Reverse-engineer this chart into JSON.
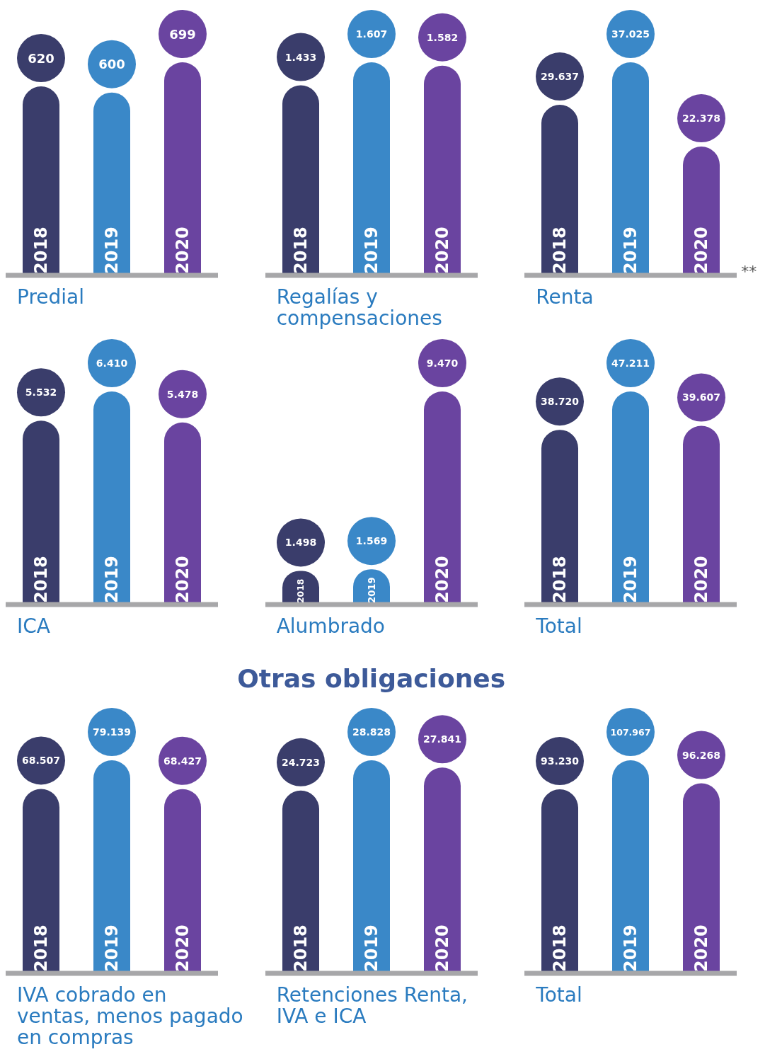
{
  "chart_data": [
    {
      "type": "bar",
      "xlabel": "Predial",
      "categories": [
        "2018",
        "2019",
        "2020"
      ],
      "values": [
        620,
        600,
        699
      ],
      "value_labels": [
        "620",
        "600",
        "699"
      ],
      "colors": [
        "#3a3d6b",
        "#3a88c8",
        "#6a44a0"
      ]
    },
    {
      "type": "bar",
      "xlabel": "Regalías y compensaciones",
      "categories": [
        "2018",
        "2019",
        "2020"
      ],
      "values": [
        1433,
        1607,
        1582
      ],
      "value_labels": [
        "1.433",
        "1.607",
        "1.582"
      ],
      "colors": [
        "#3a3d6b",
        "#3a88c8",
        "#6a44a0"
      ]
    },
    {
      "type": "bar",
      "xlabel": "Renta",
      "annotations": [
        "**"
      ],
      "categories": [
        "2018",
        "2019",
        "2020"
      ],
      "values": [
        29637,
        37025,
        22378
      ],
      "value_labels": [
        "29.637",
        "37.025",
        "22.378"
      ],
      "colors": [
        "#3a3d6b",
        "#3a88c8",
        "#6a44a0"
      ]
    },
    {
      "type": "bar",
      "xlabel": "ICA",
      "categories": [
        "2018",
        "2019",
        "2020"
      ],
      "values": [
        5532,
        6410,
        5478
      ],
      "value_labels": [
        "5.532",
        "6.410",
        "5.478"
      ],
      "colors": [
        "#3a3d6b",
        "#3a88c8",
        "#6a44a0"
      ]
    },
    {
      "type": "bar",
      "xlabel": "Alumbrado",
      "categories": [
        "2018",
        "2019",
        "2020"
      ],
      "values": [
        1498,
        1569,
        9470
      ],
      "value_labels": [
        "1.498",
        "1.569",
        "9.470"
      ],
      "colors": [
        "#3a3d6b",
        "#3a88c8",
        "#6a44a0"
      ]
    },
    {
      "type": "bar",
      "xlabel": "Total",
      "categories": [
        "2018",
        "2019",
        "2020"
      ],
      "values": [
        38720,
        47211,
        39607
      ],
      "value_labels": [
        "38.720",
        "47.211",
        "39.607"
      ],
      "colors": [
        "#3a3d6b",
        "#3a88c8",
        "#6a44a0"
      ]
    },
    {
      "type": "bar",
      "xlabel": "IVA cobrado en ventas, menos pagado en compras",
      "categories": [
        "2018",
        "2019",
        "2020"
      ],
      "values": [
        68507,
        79139,
        68427
      ],
      "value_labels": [
        "68.507",
        "79.139",
        "68.427"
      ],
      "colors": [
        "#3a3d6b",
        "#3a88c8",
        "#6a44a0"
      ]
    },
    {
      "type": "bar",
      "title": "Otras obligaciones",
      "xlabel": "Retenciones Renta, IVA e ICA",
      "categories": [
        "2018",
        "2019",
        "2020"
      ],
      "values": [
        24723,
        28828,
        27841
      ],
      "value_labels": [
        "24.723",
        "28.828",
        "27.841"
      ],
      "colors": [
        "#3a3d6b",
        "#3a88c8",
        "#6a44a0"
      ]
    },
    {
      "type": "bar",
      "xlabel": "Total",
      "categories": [
        "2018",
        "2019",
        "2020"
      ],
      "values": [
        93230,
        107967,
        96268
      ],
      "value_labels": [
        "93.230",
        "107.967",
        "96.268"
      ],
      "colors": [
        "#3a3d6b",
        "#3a88c8",
        "#6a44a0"
      ]
    }
  ]
}
